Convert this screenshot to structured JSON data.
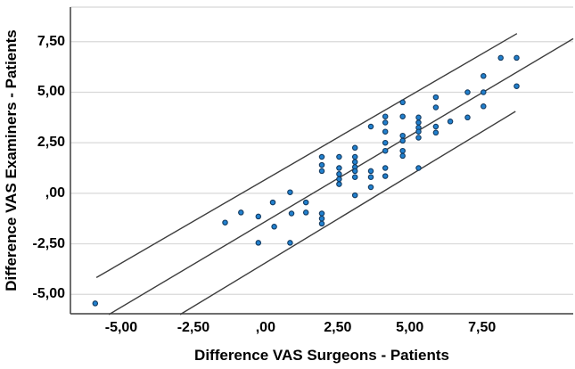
{
  "chart_data": {
    "type": "scatter",
    "title": "",
    "xlabel": "Difference VAS Surgeons - Patients",
    "ylabel": "Difference VAS Examiners - Patients",
    "x_ticks": {
      "values": [
        -5,
        -2.5,
        0,
        2.5,
        5,
        7.5
      ],
      "labels": [
        "-5,00",
        "-2,50",
        ",00",
        "2,50",
        "5,00",
        "7,50"
      ]
    },
    "y_ticks": {
      "values": [
        7.5,
        5,
        2.5,
        0,
        -2.5,
        -5
      ],
      "labels": [
        "7,50",
        "5,00",
        "2,50",
        ",00",
        "-2,50",
        "-5,00"
      ]
    },
    "xlim": [
      -6.76,
      10.66
    ],
    "ylim": [
      -5.96,
      9.21
    ],
    "grid": "horizontal-only",
    "legend": "none",
    "points": [
      [
        -5.9,
        -5.45
      ],
      [
        -1.4,
        -1.45
      ],
      [
        -0.85,
        -0.95
      ],
      [
        -0.25,
        -1.15
      ],
      [
        -0.25,
        -2.45
      ],
      [
        0.25,
        -0.45
      ],
      [
        0.3,
        -1.65
      ],
      [
        0.85,
        0.05
      ],
      [
        0.9,
        -1.0
      ],
      [
        0.85,
        -2.45
      ],
      [
        1.4,
        -0.45
      ],
      [
        1.4,
        -0.95
      ],
      [
        1.95,
        1.8
      ],
      [
        1.95,
        1.4
      ],
      [
        1.95,
        1.1
      ],
      [
        1.95,
        -1.0
      ],
      [
        1.95,
        -1.25
      ],
      [
        1.95,
        -1.5
      ],
      [
        2.55,
        1.8
      ],
      [
        2.55,
        1.25
      ],
      [
        2.55,
        0.95
      ],
      [
        2.55,
        0.7
      ],
      [
        2.55,
        0.45
      ],
      [
        3.1,
        2.25
      ],
      [
        3.1,
        1.8
      ],
      [
        3.1,
        1.55
      ],
      [
        3.1,
        1.3
      ],
      [
        3.1,
        1.1
      ],
      [
        3.1,
        0.8
      ],
      [
        3.1,
        -0.1
      ],
      [
        3.65,
        3.3
      ],
      [
        3.65,
        1.1
      ],
      [
        3.65,
        0.8
      ],
      [
        3.65,
        0.3
      ],
      [
        4.15,
        3.8
      ],
      [
        4.15,
        3.5
      ],
      [
        4.15,
        3.05
      ],
      [
        4.15,
        2.5
      ],
      [
        4.15,
        2.1
      ],
      [
        4.15,
        1.25
      ],
      [
        4.15,
        0.85
      ],
      [
        4.75,
        4.5
      ],
      [
        4.75,
        3.8
      ],
      [
        4.75,
        2.85
      ],
      [
        4.75,
        2.6
      ],
      [
        4.75,
        2.1
      ],
      [
        4.75,
        1.85
      ],
      [
        5.3,
        3.75
      ],
      [
        5.3,
        3.5
      ],
      [
        5.3,
        3.25
      ],
      [
        5.3,
        3.05
      ],
      [
        5.3,
        2.75
      ],
      [
        5.3,
        1.25
      ],
      [
        5.9,
        4.75
      ],
      [
        5.9,
        4.25
      ],
      [
        5.9,
        3.3
      ],
      [
        5.9,
        3.0
      ],
      [
        6.4,
        3.55
      ],
      [
        7.0,
        5.0
      ],
      [
        7.0,
        3.75
      ],
      [
        7.55,
        5.8
      ],
      [
        7.55,
        5.0
      ],
      [
        7.55,
        4.3
      ],
      [
        8.15,
        6.7
      ],
      [
        8.7,
        6.7
      ],
      [
        8.7,
        5.3
      ]
    ],
    "reference_lines": [
      {
        "name": "upper-limit-line",
        "x1": -5.86,
        "y1": -4.17,
        "x2": 8.71,
        "y2": 7.9
      },
      {
        "name": "mean-fit-line",
        "x1": -5.43,
        "y1": -6.0,
        "x2": 10.66,
        "y2": 7.65
      },
      {
        "name": "lower-limit-line",
        "x1": -2.96,
        "y1": -6.0,
        "x2": 8.66,
        "y2": 4.05
      }
    ],
    "style": {
      "point_fill": "#2180ce",
      "point_stroke": "#133a60",
      "ref_line_color": "#3d3d3d",
      "grid_color": "#d8d8d8",
      "axis_color": "#3f3f3f",
      "text_color": "#000000",
      "background": "#ffffff"
    }
  }
}
